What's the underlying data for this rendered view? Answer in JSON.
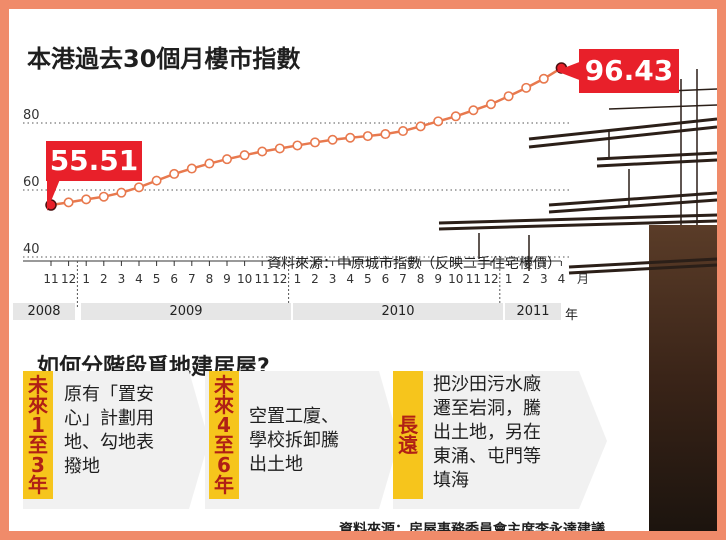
{
  "title": "本港過去30個月樓市指數",
  "source_note": "資料來源：中原城市指數（反映二手住宅樓價）",
  "chart_data": {
    "type": "line",
    "title": "本港過去30個月樓市指數",
    "months": [
      "11",
      "12",
      "1",
      "2",
      "3",
      "4",
      "5",
      "6",
      "7",
      "8",
      "9",
      "10",
      "11",
      "12",
      "1",
      "2",
      "3",
      "4",
      "5",
      "6",
      "7",
      "8",
      "9",
      "10",
      "11",
      "12",
      "1",
      "2",
      "3",
      "4"
    ],
    "month_unit": "月",
    "years": [
      "2008",
      "2009",
      "2010",
      "2011"
    ],
    "year_unit": "年",
    "yticks": [
      40,
      60,
      80
    ],
    "ylim": [
      40,
      100
    ],
    "values": [
      55.51,
      56.3,
      57.2,
      58.0,
      59.2,
      60.8,
      62.8,
      64.8,
      66.4,
      67.9,
      69.2,
      70.4,
      71.5,
      72.4,
      73.3,
      74.2,
      75.0,
      75.6,
      76.1,
      76.7,
      77.6,
      79.0,
      80.5,
      82.0,
      83.8,
      85.6,
      88.0,
      90.5,
      93.2,
      96.43
    ],
    "start_label": "55.51",
    "end_label": "96.43",
    "line_color": "#e8794e",
    "highlight_color": "#e8202a"
  },
  "section": {
    "heading": "如何分階段覓地建居屋?",
    "items": [
      {
        "tag": "未來1至3年",
        "text": "原有「置安\n心」計劃用\n地、勾地表\n撥地"
      },
      {
        "tag": "未來4至6年",
        "text": "空置工廈、\n學校拆卸騰\n出土地"
      },
      {
        "tag": "長遠",
        "text": "把沙田污水廠\n遷至岩洞，騰\n出土地，另在\n東涌、屯門等\n填海"
      }
    ]
  },
  "footer_note": "資料來源：房屋事務委員會主席李永達建議",
  "colors": {
    "frame": "#f08b6a",
    "accent_yellow": "#f6c51c",
    "red": "#e8202a",
    "silhouette": "#3a2a20"
  }
}
